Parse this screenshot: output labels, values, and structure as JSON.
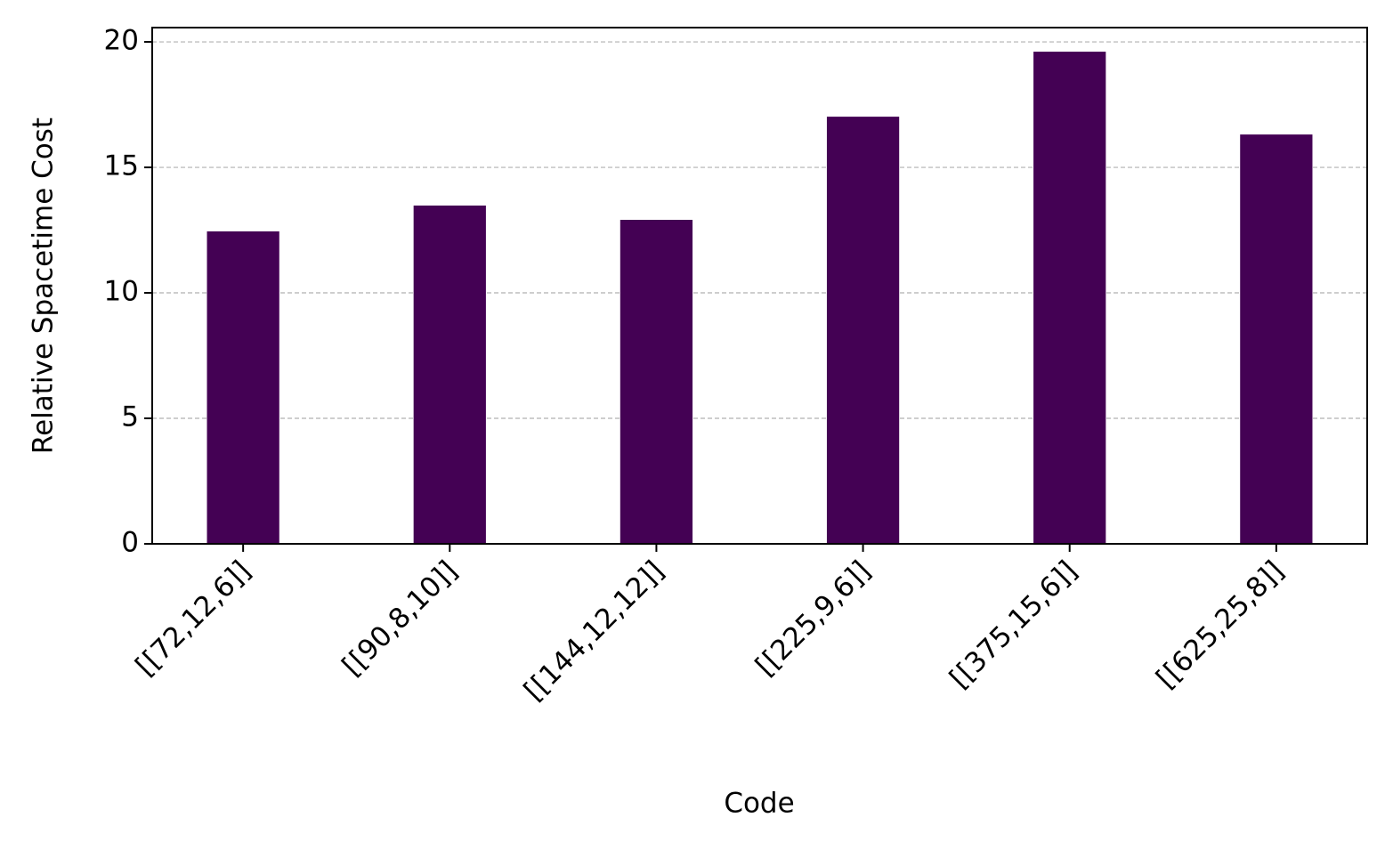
{
  "chart_data": {
    "type": "bar",
    "x_label": "Code",
    "y_label": "Relative Spacetime Cost",
    "categories": [
      "[[72,12,6]]",
      "[[90,8,10]]",
      "[[144,12,12]]",
      "[[225,9,6]]",
      "[[375,15,6]]",
      "[[625,25,8]]"
    ],
    "values": [
      12.45,
      13.48,
      12.91,
      17.02,
      19.61,
      16.31
    ],
    "color": "#440154",
    "ylim": [
      0,
      20.57
    ],
    "yticks": [
      0,
      5,
      10,
      15,
      20
    ],
    "grid": true
  }
}
